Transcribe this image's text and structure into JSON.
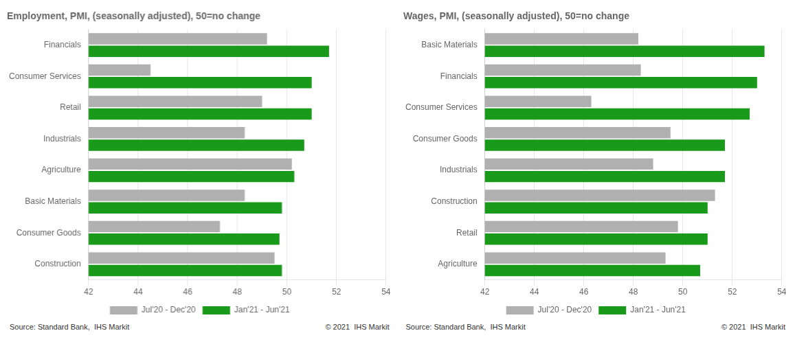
{
  "chart_data": [
    {
      "type": "bar",
      "orientation": "horizontal",
      "title": "Employment, PMI, (seasonally adjusted), 50=no change",
      "categories": [
        "Construction",
        "Consumer Goods",
        "Basic Materials",
        "Agriculture",
        "Industrials",
        "Retail",
        "Consumer Services",
        "Financials"
      ],
      "series": [
        {
          "name": "Jul'20 - Dec'20",
          "color": "#b0b0b0",
          "values": [
            49.5,
            47.3,
            48.3,
            50.2,
            48.3,
            49.0,
            44.5,
            49.2
          ]
        },
        {
          "name": "Jan'21 - Jun'21",
          "color": "#1a9a1a",
          "values": [
            49.8,
            49.7,
            49.8,
            50.3,
            50.7,
            51.0,
            51.0,
            51.7
          ]
        }
      ],
      "xlim": [
        42,
        54
      ],
      "xticks": [
        42,
        44,
        46,
        48,
        50,
        52,
        54
      ],
      "grid": true,
      "legend": "bottom",
      "annotations": [
        "Source: Standard Bank,  IHS Markit",
        "© 2021  IHS Markit"
      ]
    },
    {
      "type": "bar",
      "orientation": "horizontal",
      "title": "Wages, PMI, (seasonally adjusted), 50=no change",
      "categories": [
        "Agriculture",
        "Retail",
        "Construction",
        "Industrials",
        "Consumer Goods",
        "Consumer Services",
        "Financials",
        "Basic Materials"
      ],
      "series": [
        {
          "name": "Jul'20 - Dec'20",
          "color": "#b0b0b0",
          "values": [
            49.3,
            49.8,
            51.3,
            48.8,
            49.5,
            46.3,
            48.3,
            48.2
          ]
        },
        {
          "name": "Jan'21 - Jun'21",
          "color": "#1a9a1a",
          "values": [
            50.7,
            51.0,
            51.0,
            51.7,
            51.7,
            52.7,
            53.0,
            53.3
          ]
        }
      ],
      "xlim": [
        42,
        54
      ],
      "xticks": [
        42,
        44,
        46,
        48,
        50,
        52,
        54
      ],
      "grid": true,
      "legend": "bottom",
      "annotations": [
        "Source: Standard Bank,  IHS Markit",
        "© 2021  IHS Markit"
      ]
    }
  ]
}
